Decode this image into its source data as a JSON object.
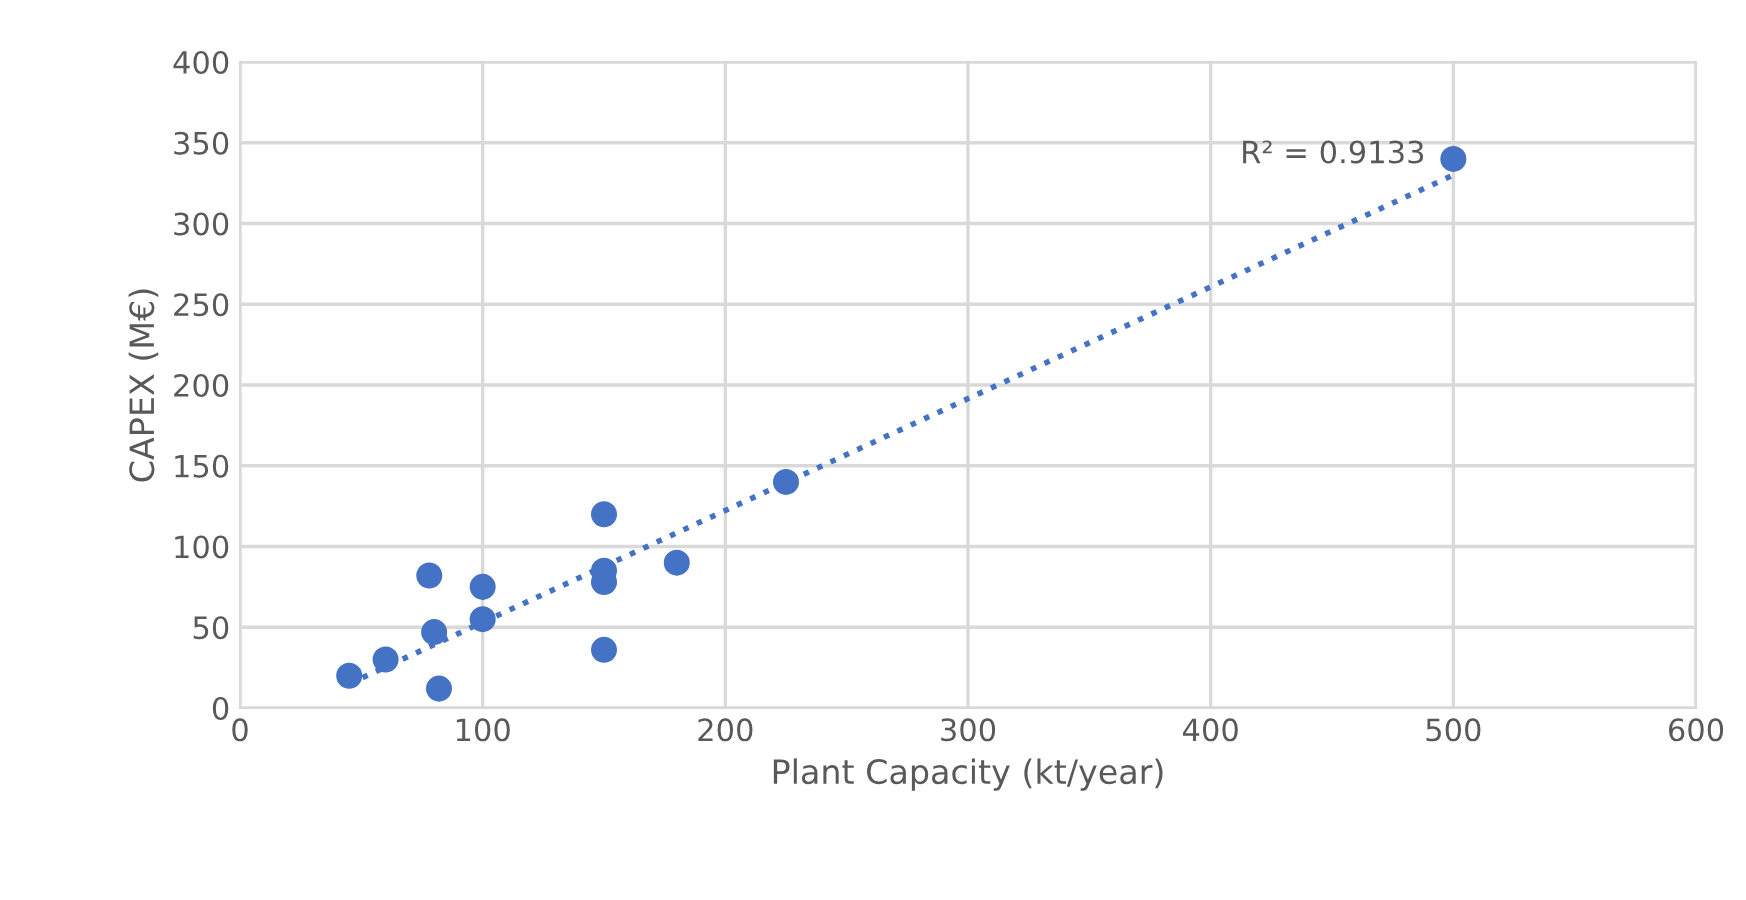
{
  "chart_data": {
    "type": "scatter",
    "xlabel": "Plant Capacity (kt/year)",
    "ylabel": "CAPEX (M€)",
    "xlim": [
      0,
      600
    ],
    "xticks": [
      0,
      100,
      200,
      300,
      400,
      500,
      600
    ],
    "ylim": [
      0,
      400
    ],
    "yticks": [
      0,
      50,
      100,
      150,
      200,
      250,
      300,
      350,
      400
    ],
    "grid": true,
    "marker": "circle",
    "series": [
      {
        "color": "#4472c4",
        "x": [
          45,
          60,
          78,
          80,
          82,
          100,
          100,
          150,
          150,
          150,
          150,
          180,
          225,
          500
        ],
        "values": [
          20,
          30,
          82,
          47,
          12,
          75,
          55,
          120,
          85,
          78,
          36,
          90,
          140,
          340
        ]
      },
      {
        "type": "line",
        "line_style": "dotted",
        "marker": "none",
        "color": "#4472c4",
        "x": [
          45,
          500
        ],
        "values": [
          15,
          330
        ]
      }
    ],
    "annotations": [
      {
        "text": "R² = 0.9133",
        "x": 500,
        "y": 330
      }
    ]
  }
}
